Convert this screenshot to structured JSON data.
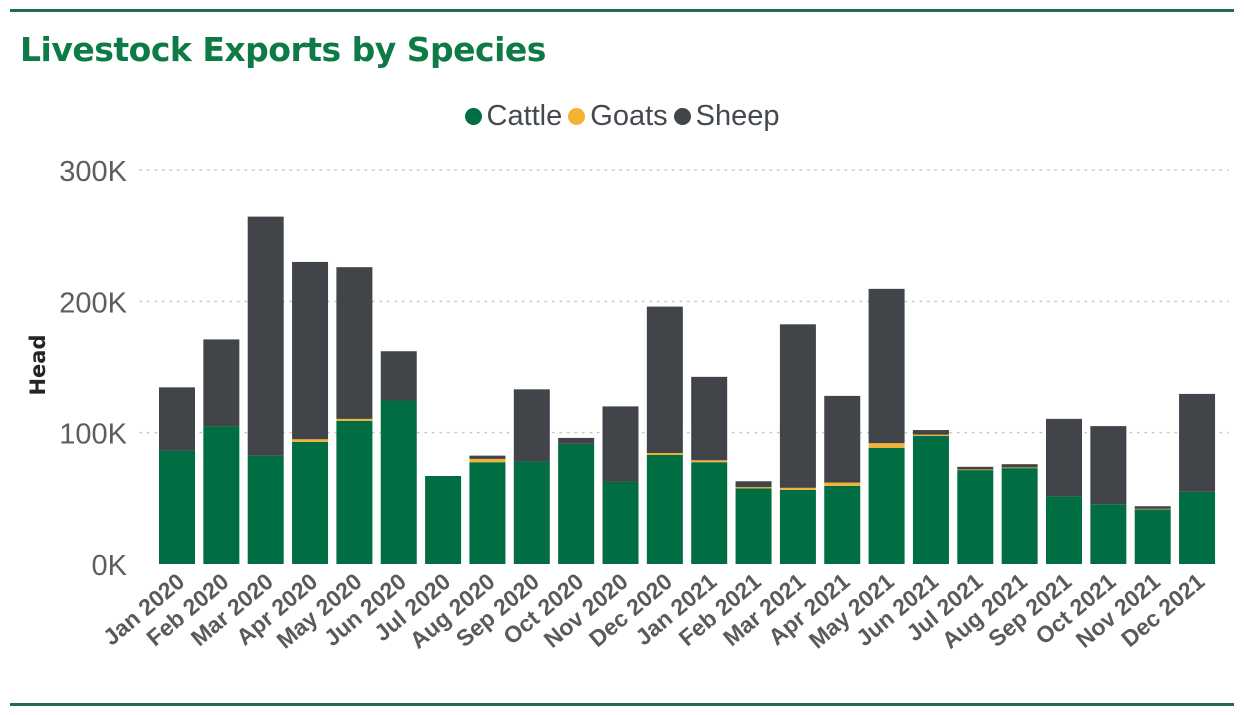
{
  "chart_data": {
    "type": "bar",
    "stacked": true,
    "title": "Livestock Exports by Species",
    "ylabel": "Head",
    "xlabel": "",
    "ylim": [
      0,
      300000
    ],
    "yticks": [
      {
        "value": 0,
        "label": "0K"
      },
      {
        "value": 100000,
        "label": "100K"
      },
      {
        "value": 200000,
        "label": "200K"
      },
      {
        "value": 300000,
        "label": "300K"
      }
    ],
    "grid": true,
    "legend_position": "top-center",
    "categories": [
      "Jan 2020",
      "Feb 2020",
      "Mar 2020",
      "Apr 2020",
      "May 2020",
      "Jun 2020",
      "Jul 2020",
      "Aug 2020",
      "Sep 2020",
      "Oct 2020",
      "Nov 2020",
      "Dec 2020",
      "Jan 2021",
      "Feb 2021",
      "Mar 2021",
      "Apr 2021",
      "May 2021",
      "Jun 2021",
      "Jul 2021",
      "Aug 2021",
      "Sep 2021",
      "Oct 2021",
      "Nov 2021",
      "Dec 2021"
    ],
    "series": [
      {
        "name": "Cattle",
        "color": "#006d42",
        "values": [
          86500,
          105000,
          82500,
          93000,
          109000,
          124500,
          67000,
          77500,
          78000,
          91500,
          62500,
          83000,
          77500,
          57500,
          56500,
          59500,
          88500,
          97500,
          71500,
          73000,
          51500,
          45500,
          41500,
          55000
        ]
      },
      {
        "name": "Goats",
        "color": "#f4b233",
        "values": [
          0,
          0,
          0,
          2000,
          1500,
          0,
          0,
          2500,
          0,
          0,
          0,
          1500,
          1500,
          1000,
          1500,
          2500,
          3500,
          1000,
          500,
          500,
          0,
          0,
          500,
          0
        ]
      },
      {
        "name": "Sheep",
        "color": "#414449",
        "values": [
          48000,
          66000,
          182000,
          135000,
          115500,
          37500,
          0,
          2500,
          55000,
          4500,
          57500,
          111500,
          63500,
          4500,
          124500,
          66000,
          117500,
          3500,
          2000,
          2500,
          59000,
          59500,
          2000,
          74500
        ]
      }
    ]
  }
}
